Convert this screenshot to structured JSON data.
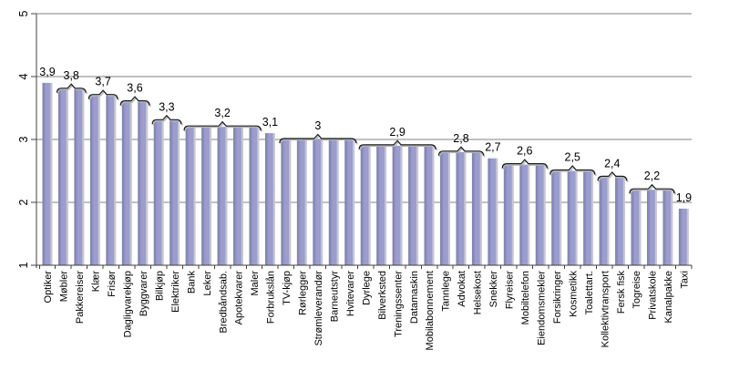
{
  "chart_data": {
    "type": "bar",
    "title": "",
    "xlabel": "",
    "ylabel": "",
    "ylim": [
      1,
      5
    ],
    "yticks": [
      "1",
      "2",
      "3",
      "4",
      "5"
    ],
    "grid": "horizontal",
    "legend": "none",
    "categories": [
      "Optiker",
      "Møbler",
      "Pakkereiser",
      "Klær",
      "Frisør",
      "Dagligvarekjøp",
      "Byggvarer",
      "Bilkjøp",
      "Elektriker",
      "Bank",
      "Leker",
      "Bredbåndsab.",
      "Apotekvarer",
      "Maler",
      "Forbrukslån",
      "TV-kjøp",
      "Rørlegger",
      "Strømleverandør",
      "Barneutstyr",
      "Hvitevarer",
      "Dyrlege",
      "Bilverksted",
      "Treningssenter",
      "Datamaskin",
      "Mobilabonnement",
      "Tannlege",
      "Advokat",
      "Helsekost",
      "Snekker",
      "Flyreiser",
      "Mobiltelefon",
      "Eiendomsmekler",
      "Forsikringer",
      "Kosmetikk",
      "Toalettart.",
      "Kollektivtransport",
      "Fersk fisk",
      "Togreise",
      "Privatskole",
      "Kanalpakke",
      "Taxi"
    ],
    "values": [
      3.9,
      3.8,
      3.8,
      3.7,
      3.7,
      3.6,
      3.6,
      3.3,
      3.3,
      3.2,
      3.2,
      3.2,
      3.2,
      3.2,
      3.1,
      3.0,
      3.0,
      3.0,
      3.0,
      3.0,
      2.9,
      2.9,
      2.9,
      2.9,
      2.9,
      2.8,
      2.8,
      2.8,
      2.7,
      2.6,
      2.6,
      2.6,
      2.5,
      2.5,
      2.5,
      2.4,
      2.4,
      2.2,
      2.2,
      2.2,
      1.9
    ],
    "value_groups": [
      {
        "label": "3,9",
        "start": 0,
        "end": 0
      },
      {
        "label": "3,8",
        "start": 1,
        "end": 2
      },
      {
        "label": "3,7",
        "start": 3,
        "end": 4
      },
      {
        "label": "3,6",
        "start": 5,
        "end": 6
      },
      {
        "label": "3,3",
        "start": 7,
        "end": 8
      },
      {
        "label": "3,2",
        "start": 9,
        "end": 13
      },
      {
        "label": "3,1",
        "start": 14,
        "end": 14
      },
      {
        "label": "3",
        "start": 15,
        "end": 19
      },
      {
        "label": "2,9",
        "start": 20,
        "end": 24
      },
      {
        "label": "2,8",
        "start": 25,
        "end": 27
      },
      {
        "label": "2,7",
        "start": 28,
        "end": 28
      },
      {
        "label": "2,6",
        "start": 29,
        "end": 31
      },
      {
        "label": "2,5",
        "start": 32,
        "end": 34
      },
      {
        "label": "2,4",
        "start": 35,
        "end": 36
      },
      {
        "label": "2,2",
        "start": 37,
        "end": 39
      },
      {
        "label": "1,9",
        "start": 40,
        "end": 40
      }
    ],
    "colors": {
      "bar_edge": "#7C80B8",
      "bar_fill": "#9B9DCC",
      "bar_shadow": "#C8C8C8",
      "gridline": "#808080",
      "axis": "#404040",
      "text": "#000000",
      "background": "#FFFFFF"
    }
  }
}
